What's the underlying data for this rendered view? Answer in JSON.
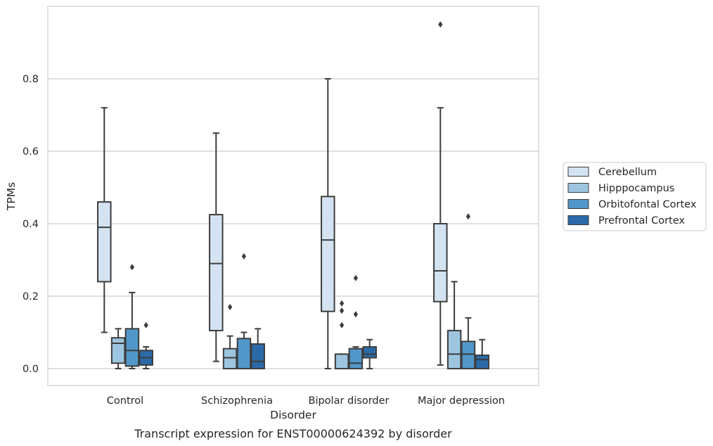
{
  "caption": "Transcript expression for ENST00000624392 by disorder",
  "chart_data": {
    "type": "box",
    "xlabel": "Disorder",
    "ylabel": "TPMs",
    "ylim": [
      -0.045,
      0.985
    ],
    "yticks": [
      "0.0",
      "0.2",
      "0.4",
      "0.6",
      "0.8"
    ],
    "grid": "horizontal",
    "legend_position": "right",
    "categories": [
      "Control",
      "Schizophrenia",
      "Bipolar disorder",
      "Major depression"
    ],
    "series": [
      {
        "name": "Cerebellum",
        "color": "#d3e3f2",
        "boxes": [
          {
            "whislo": 0.1,
            "q1": 0.24,
            "med": 0.39,
            "q3": 0.46,
            "whishi": 0.72,
            "fliers": []
          },
          {
            "whislo": 0.02,
            "q1": 0.105,
            "med": 0.29,
            "q3": 0.425,
            "whishi": 0.65,
            "fliers": []
          },
          {
            "whislo": 0.0,
            "q1": 0.158,
            "med": 0.355,
            "q3": 0.475,
            "whishi": 0.8,
            "fliers": []
          },
          {
            "whislo": 0.01,
            "q1": 0.185,
            "med": 0.27,
            "q3": 0.4,
            "whishi": 0.72,
            "fliers": [
              0.95
            ]
          }
        ]
      },
      {
        "name": "Hipppocampus",
        "color": "#9dc5e0",
        "boxes": [
          {
            "whislo": 0.0,
            "q1": 0.015,
            "med": 0.07,
            "q3": 0.085,
            "whishi": 0.11,
            "fliers": []
          },
          {
            "whislo": 0.0,
            "q1": 0.0,
            "med": 0.03,
            "q3": 0.055,
            "whishi": 0.09,
            "fliers": [
              0.17
            ]
          },
          {
            "whislo": 0.0,
            "q1": 0.0,
            "med": 0.0,
            "q3": 0.04,
            "whishi": 0.04,
            "fliers": [
              0.12,
              0.16,
              0.18
            ]
          },
          {
            "whislo": 0.0,
            "q1": 0.0,
            "med": 0.04,
            "q3": 0.105,
            "whishi": 0.24,
            "fliers": []
          }
        ]
      },
      {
        "name": "Orbitofontal Cortex",
        "color": "#5297c9",
        "boxes": [
          {
            "whislo": 0.0,
            "q1": 0.007,
            "med": 0.05,
            "q3": 0.11,
            "whishi": 0.21,
            "fliers": [
              0.28
            ]
          },
          {
            "whislo": 0.0,
            "q1": 0.0,
            "med": 0.0,
            "q3": 0.083,
            "whishi": 0.1,
            "fliers": [
              0.31
            ]
          },
          {
            "whislo": 0.0,
            "q1": 0.0,
            "med": 0.015,
            "q3": 0.055,
            "whishi": 0.06,
            "fliers": [
              0.15,
              0.25
            ]
          },
          {
            "whislo": 0.0,
            "q1": 0.0,
            "med": 0.04,
            "q3": 0.075,
            "whishi": 0.14,
            "fliers": [
              0.42
            ]
          }
        ]
      },
      {
        "name": "Prefrontal Cortex",
        "color": "#2b6aa8",
        "boxes": [
          {
            "whislo": 0.0,
            "q1": 0.01,
            "med": 0.03,
            "q3": 0.05,
            "whishi": 0.06,
            "fliers": [
              0.12
            ]
          },
          {
            "whislo": 0.0,
            "q1": 0.0,
            "med": 0.02,
            "q3": 0.068,
            "whishi": 0.11,
            "fliers": []
          },
          {
            "whislo": 0.0,
            "q1": 0.03,
            "med": 0.04,
            "q3": 0.06,
            "whishi": 0.08,
            "fliers": []
          },
          {
            "whislo": 0.0,
            "q1": 0.0,
            "med": 0.025,
            "q3": 0.037,
            "whishi": 0.08,
            "fliers": []
          }
        ]
      }
    ]
  }
}
